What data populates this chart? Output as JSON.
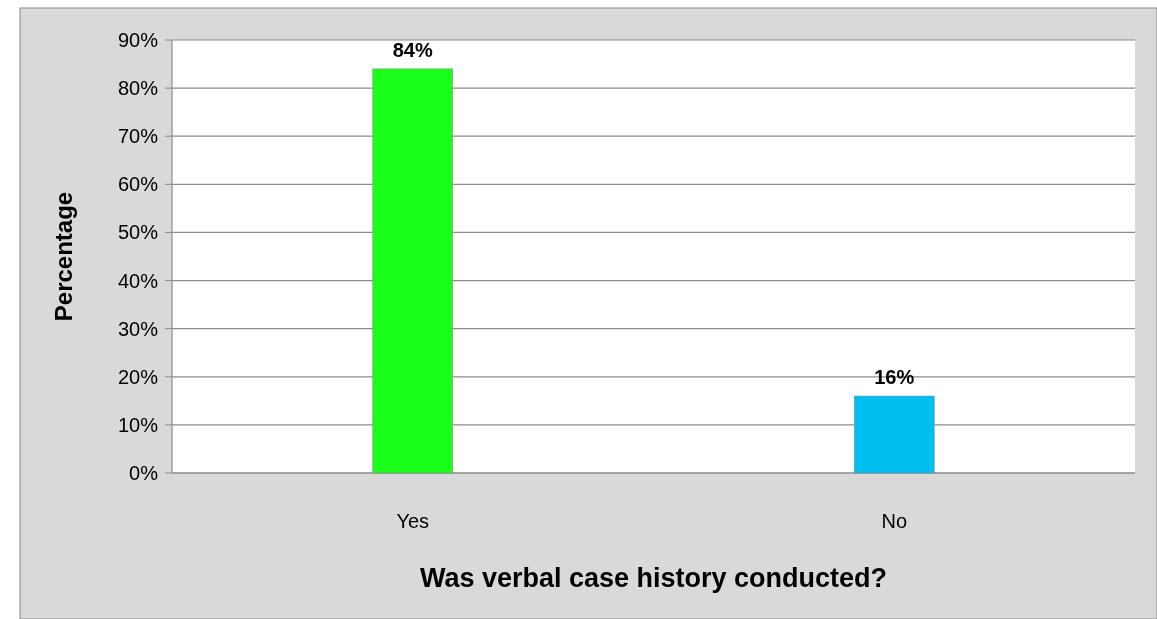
{
  "chart_data": {
    "type": "bar",
    "xlabel": "Was verbal case history conducted?",
    "ylabel": "Percentage",
    "categories": [
      "Yes",
      "No"
    ],
    "values": [
      84,
      16
    ],
    "colors": [
      "#19ff19",
      "#00bff0"
    ],
    "ylim": [
      0,
      90
    ],
    "yticks": [
      {
        "value": 0,
        "label": "0%"
      },
      {
        "value": 10,
        "label": "10%"
      },
      {
        "value": 20,
        "label": "20%"
      },
      {
        "value": 30,
        "label": "30%"
      },
      {
        "value": 40,
        "label": "40%"
      },
      {
        "value": 50,
        "label": "50%"
      },
      {
        "value": 60,
        "label": "60%"
      },
      {
        "value": 70,
        "label": "70%"
      },
      {
        "value": 80,
        "label": "80%"
      },
      {
        "value": 90,
        "label": "90%"
      }
    ],
    "value_labels": [
      "84%",
      "16%"
    ],
    "grid": "y"
  }
}
